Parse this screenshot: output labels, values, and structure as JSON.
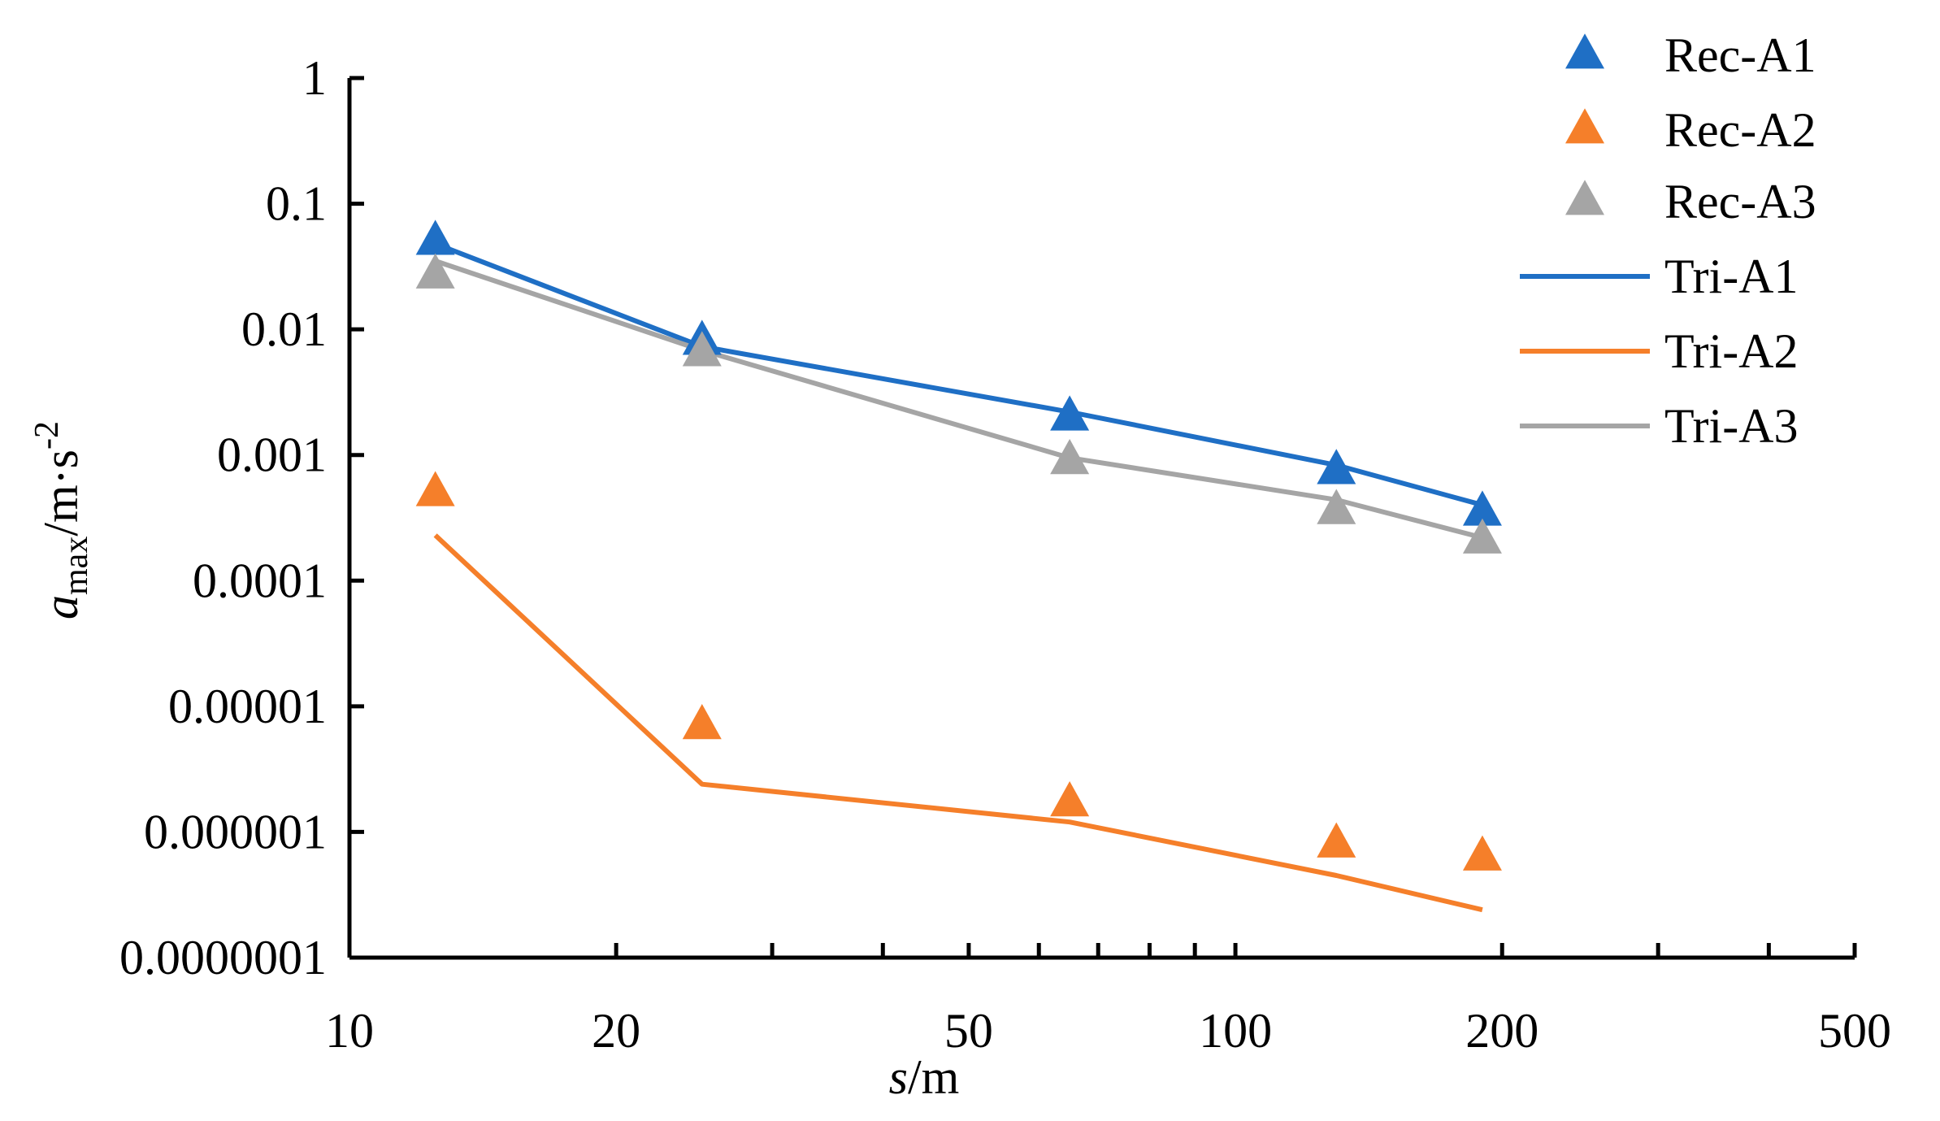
{
  "chart_data": {
    "type": "line",
    "xscale": "log",
    "yscale": "log",
    "xlim": [
      10,
      500
    ],
    "ylim": [
      1e-07,
      1
    ],
    "xlabel": {
      "var": "s",
      "unit": "/m"
    },
    "ylabel": {
      "var": "a",
      "sub": "max",
      "unit": "/m·s",
      "sup": "-2"
    },
    "x_tick_labels": [
      "10",
      "20",
      "50",
      "100",
      "200",
      "500"
    ],
    "y_tick_labels": [
      "1",
      "0.1",
      "0.01",
      "0.001",
      "0.0001",
      "0.00001",
      "0.000001",
      "0.0000001"
    ],
    "grid": false,
    "legend_position": "top-right",
    "x": [
      12.5,
      25,
      65,
      130,
      190
    ],
    "series": [
      {
        "name": "Rec-A1",
        "kind": "marker",
        "color": "#1f6fc5",
        "values": [
          0.05,
          0.008,
          0.002,
          0.00075,
          0.00035
        ]
      },
      {
        "name": "Rec-A2",
        "kind": "marker",
        "color": "#f57f2a",
        "values": [
          0.0005,
          7e-06,
          1.7e-06,
          8e-07,
          6.3e-07
        ]
      },
      {
        "name": "Rec-A3",
        "kind": "marker",
        "color": "#a5a5a5",
        "values": [
          0.027,
          0.0065,
          0.0009,
          0.00036,
          0.00021
        ]
      },
      {
        "name": "Tri-A1",
        "kind": "line",
        "color": "#1f6fc5",
        "values": [
          0.048,
          0.0073,
          0.0022,
          0.00083,
          0.0004
        ]
      },
      {
        "name": "Tri-A2",
        "kind": "line",
        "color": "#f57f2a",
        "values": [
          0.00023,
          2.4e-06,
          1.2e-06,
          4.5e-07,
          2.4e-07
        ]
      },
      {
        "name": "Tri-A3",
        "kind": "line",
        "color": "#a5a5a5",
        "values": [
          0.035,
          0.0068,
          0.00095,
          0.00044,
          0.00022
        ]
      }
    ]
  }
}
